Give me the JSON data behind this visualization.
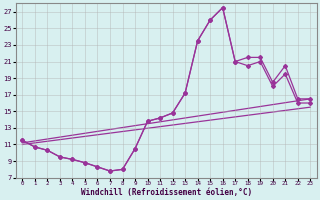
{
  "xlabel": "Windchill (Refroidissement éolien,°C)",
  "background_color": "#d8f0f0",
  "grid_color": "#b0b0b0",
  "line_color": "#993399",
  "xlim": [
    -0.5,
    23.5
  ],
  "ylim": [
    7,
    28
  ],
  "xticks": [
    0,
    1,
    2,
    3,
    4,
    5,
    6,
    7,
    8,
    9,
    10,
    11,
    12,
    13,
    14,
    15,
    16,
    17,
    18,
    19,
    20,
    21,
    22,
    23
  ],
  "yticks": [
    7,
    9,
    11,
    13,
    15,
    17,
    19,
    21,
    23,
    25,
    27
  ],
  "series1_x": [
    0,
    1,
    2,
    3,
    4,
    5,
    6,
    7,
    8,
    9,
    10,
    11,
    12,
    13,
    14,
    15,
    16,
    17,
    18,
    19,
    20,
    21,
    22,
    23
  ],
  "series1_y": [
    11.5,
    10.7,
    10.3,
    9.5,
    9.2,
    8.8,
    8.3,
    7.8,
    8.0,
    10.5,
    13.8,
    14.2,
    14.8,
    17.2,
    23.5,
    26.0,
    27.5,
    21.0,
    21.5,
    21.5,
    18.5,
    20.5,
    16.5,
    16.5
  ],
  "series2_x": [
    0,
    1,
    2,
    3,
    4,
    5,
    6,
    7,
    8,
    9,
    10,
    11,
    12,
    13,
    14,
    15,
    16,
    17,
    18,
    19,
    20,
    21,
    22,
    23
  ],
  "series2_y": [
    11.5,
    10.7,
    10.3,
    9.5,
    9.2,
    8.8,
    8.3,
    7.8,
    8.0,
    10.5,
    13.8,
    14.2,
    14.8,
    17.2,
    23.5,
    26.0,
    27.5,
    21.0,
    20.5,
    21.0,
    18.0,
    19.5,
    16.0,
    16.0
  ],
  "line1_x": [
    0,
    23
  ],
  "line1_y": [
    11.2,
    16.5
  ],
  "line2_x": [
    0,
    23
  ],
  "line2_y": [
    11.0,
    15.5
  ]
}
